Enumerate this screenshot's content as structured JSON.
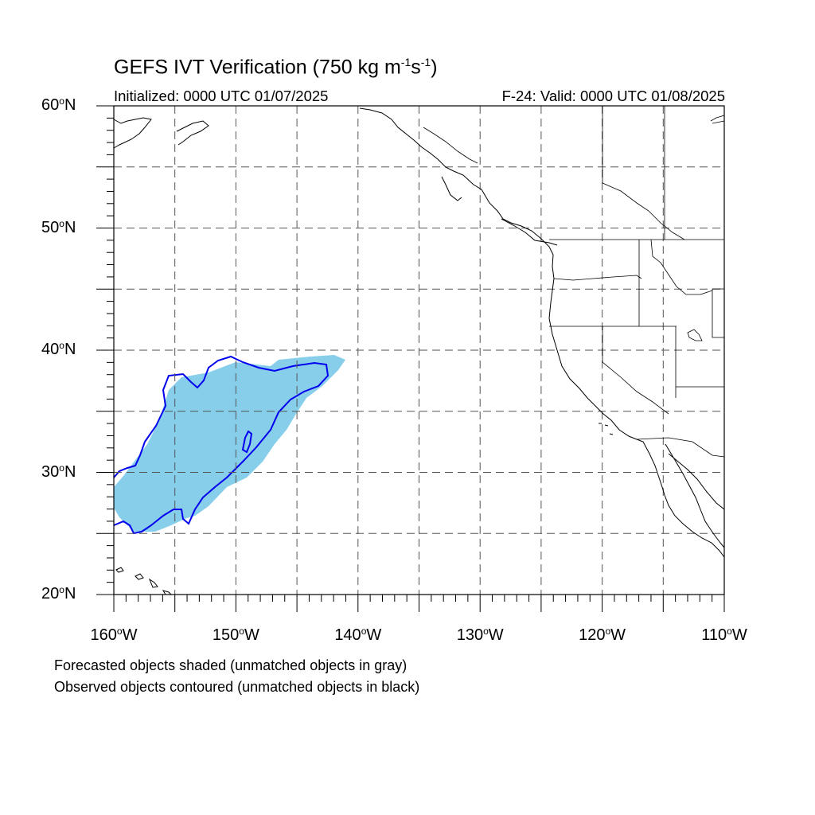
{
  "title": {
    "main": "GEFS IVT Verification (750 kg m",
    "exp1": "-1",
    "mid": "s",
    "exp2": "-1",
    "end": ")"
  },
  "subtitle": {
    "initialized": "Initialized: 0000 UTC 01/07/2025",
    "valid": "F-24: Valid: 0000 UTC 01/08/2025"
  },
  "axes": {
    "lat_ticks": [
      {
        "value": 60,
        "label": "60",
        "hemi": "N"
      },
      {
        "value": 50,
        "label": "50",
        "hemi": "N"
      },
      {
        "value": 40,
        "label": "40",
        "hemi": "N"
      },
      {
        "value": 30,
        "label": "30",
        "hemi": "N"
      },
      {
        "value": 20,
        "label": "20",
        "hemi": "N"
      }
    ],
    "lon_ticks": [
      {
        "value": -160,
        "label": "160",
        "hemi": "W"
      },
      {
        "value": -150,
        "label": "150",
        "hemi": "W"
      },
      {
        "value": -140,
        "label": "140",
        "hemi": "W"
      },
      {
        "value": -130,
        "label": "130",
        "hemi": "W"
      },
      {
        "value": -120,
        "label": "120",
        "hemi": "W"
      },
      {
        "value": -110,
        "label": "110",
        "hemi": "W"
      }
    ],
    "lat_range": [
      20,
      60
    ],
    "lon_range": [
      -160,
      -110
    ],
    "grid_spacing_deg": 5,
    "grid_style": "dashed"
  },
  "footnotes": {
    "line1": "Forecasted objects shaded (unmatched objects in gray)",
    "line2": "Observed objects contoured (unmatched objects in black)"
  },
  "colors": {
    "forecast_fill": "#87ceeb",
    "observed_contour": "#0000ee",
    "coastline": "#000000",
    "grid": "#555555"
  }
}
